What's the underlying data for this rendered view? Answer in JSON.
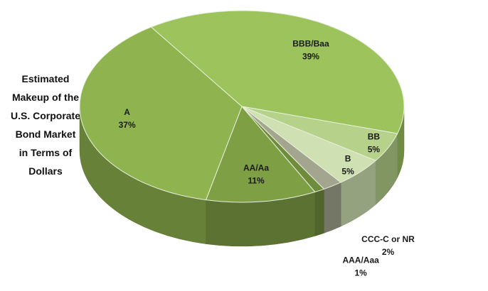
{
  "chart_data": {
    "type": "pie",
    "title": "Estimated Makeup of the U.S. Corporate Bond Market in Terms of Dollars",
    "categories": [
      "BBB/Baa",
      "BB",
      "B",
      "CCC-C or NR",
      "AAA/Aaa",
      "AA/Aa",
      "A"
    ],
    "values": [
      39,
      5,
      5,
      2,
      1,
      11,
      37
    ],
    "value_labels": [
      "39%",
      "5%",
      "5%",
      "2%",
      "1%",
      "11%",
      "37%"
    ],
    "colors": [
      "#9cc35c",
      "#b5d18a",
      "#cfe1b2",
      "#a3a58e",
      "#6e8c3c",
      "#7f9f45",
      "#8fb34f"
    ]
  }
}
